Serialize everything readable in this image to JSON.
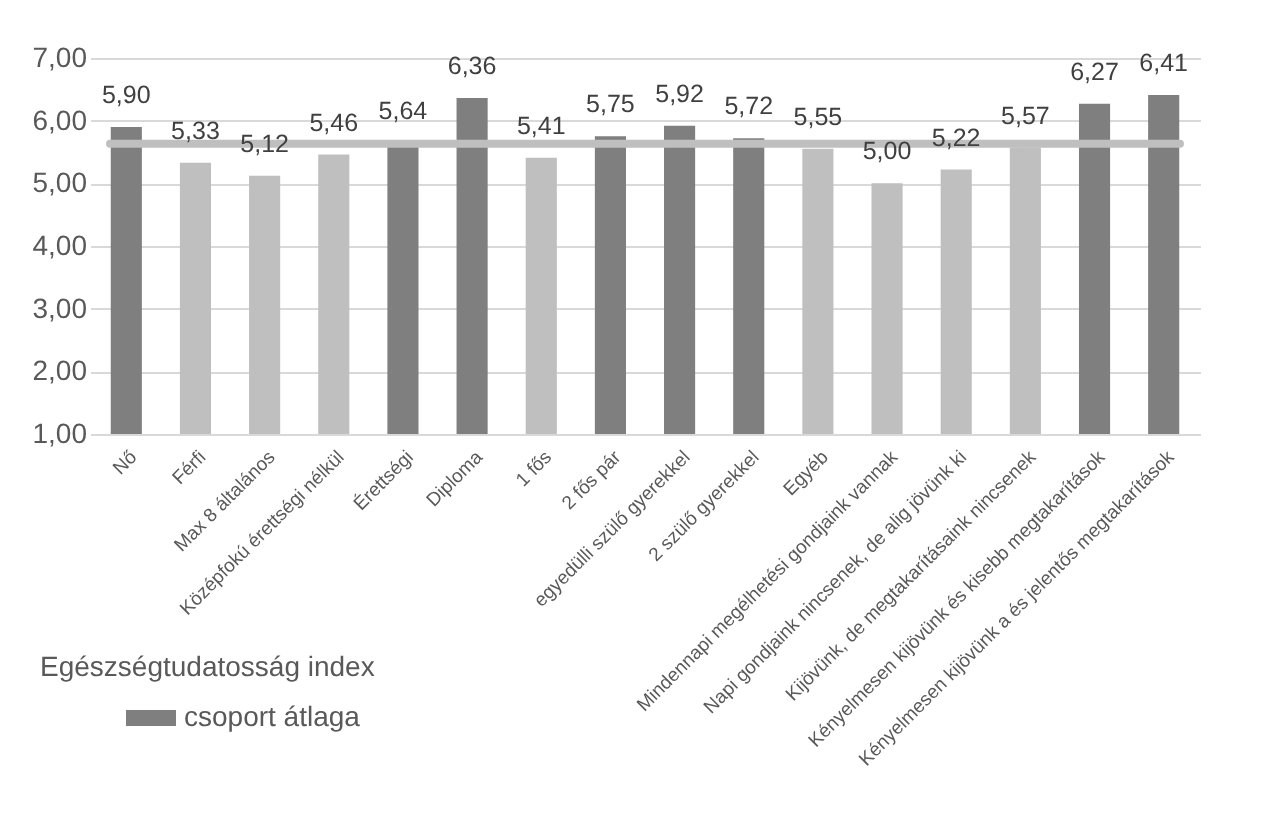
{
  "chart_data": {
    "type": "bar",
    "categories": [
      "Nő",
      "Férfi",
      "Max 8 általános",
      "Középfokú érettségi nélkül",
      "Érettségi",
      "Diploma",
      "1 fős",
      "2 fős pár",
      "egyedülli szülő gyerekkel",
      "2 szülő gyerekkel",
      "Egyéb",
      "Mindennapi megélhetési gondjaink vannak",
      "Napi gondjaink nincsenek, de alig jövünk ki",
      "Kijövünk, de megtakarításaink nincsenek",
      "Kényelmesen kijövünk és kisebb megtakarítások",
      "Kényelmesen kijövünk a és jelentős megtakarítások"
    ],
    "series": [
      {
        "name": "csoport átlaga",
        "color": "#7f7f7f",
        "values": [
          5.9,
          5.33,
          5.12,
          5.46,
          5.64,
          6.36,
          5.41,
          5.75,
          5.92,
          5.72,
          5.55,
          5.0,
          5.22,
          5.57,
          6.27,
          6.41
        ],
        "colors": [
          "#7f7f7f",
          "#bfbfbf",
          "#bfbfbf",
          "#bfbfbf",
          "#7f7f7f",
          "#7f7f7f",
          "#bfbfbf",
          "#7f7f7f",
          "#7f7f7f",
          "#7f7f7f",
          "#bfbfbf",
          "#bfbfbf",
          "#bfbfbf",
          "#bfbfbf",
          "#7f7f7f",
          "#7f7f7f"
        ]
      }
    ],
    "value_labels": [
      "5,90",
      "5,33",
      "5,12",
      "5,46",
      "5,64",
      "6,36",
      "5,41",
      "5,75",
      "5,92",
      "5,72",
      "5,55",
      "5,00",
      "5,22",
      "5,57",
      "6,27",
      "6,41"
    ],
    "legend_title": "Egészségtudatosság index",
    "legend": "bottom left",
    "ylim": [
      1,
      7
    ],
    "yticks": [
      {
        "value": 1,
        "label": "1,00"
      },
      {
        "value": 2,
        "label": "2,00"
      },
      {
        "value": 3,
        "label": "3,00"
      },
      {
        "value": 4,
        "label": "4,00"
      },
      {
        "value": 5,
        "label": "5,00"
      },
      {
        "value": 6,
        "label": "6,00"
      },
      {
        "value": 7,
        "label": "7,00"
      }
    ],
    "grid": "y",
    "ref_lines": [
      {
        "axis": "y",
        "value": 5.63,
        "color": "#bfbfbf"
      }
    ]
  }
}
